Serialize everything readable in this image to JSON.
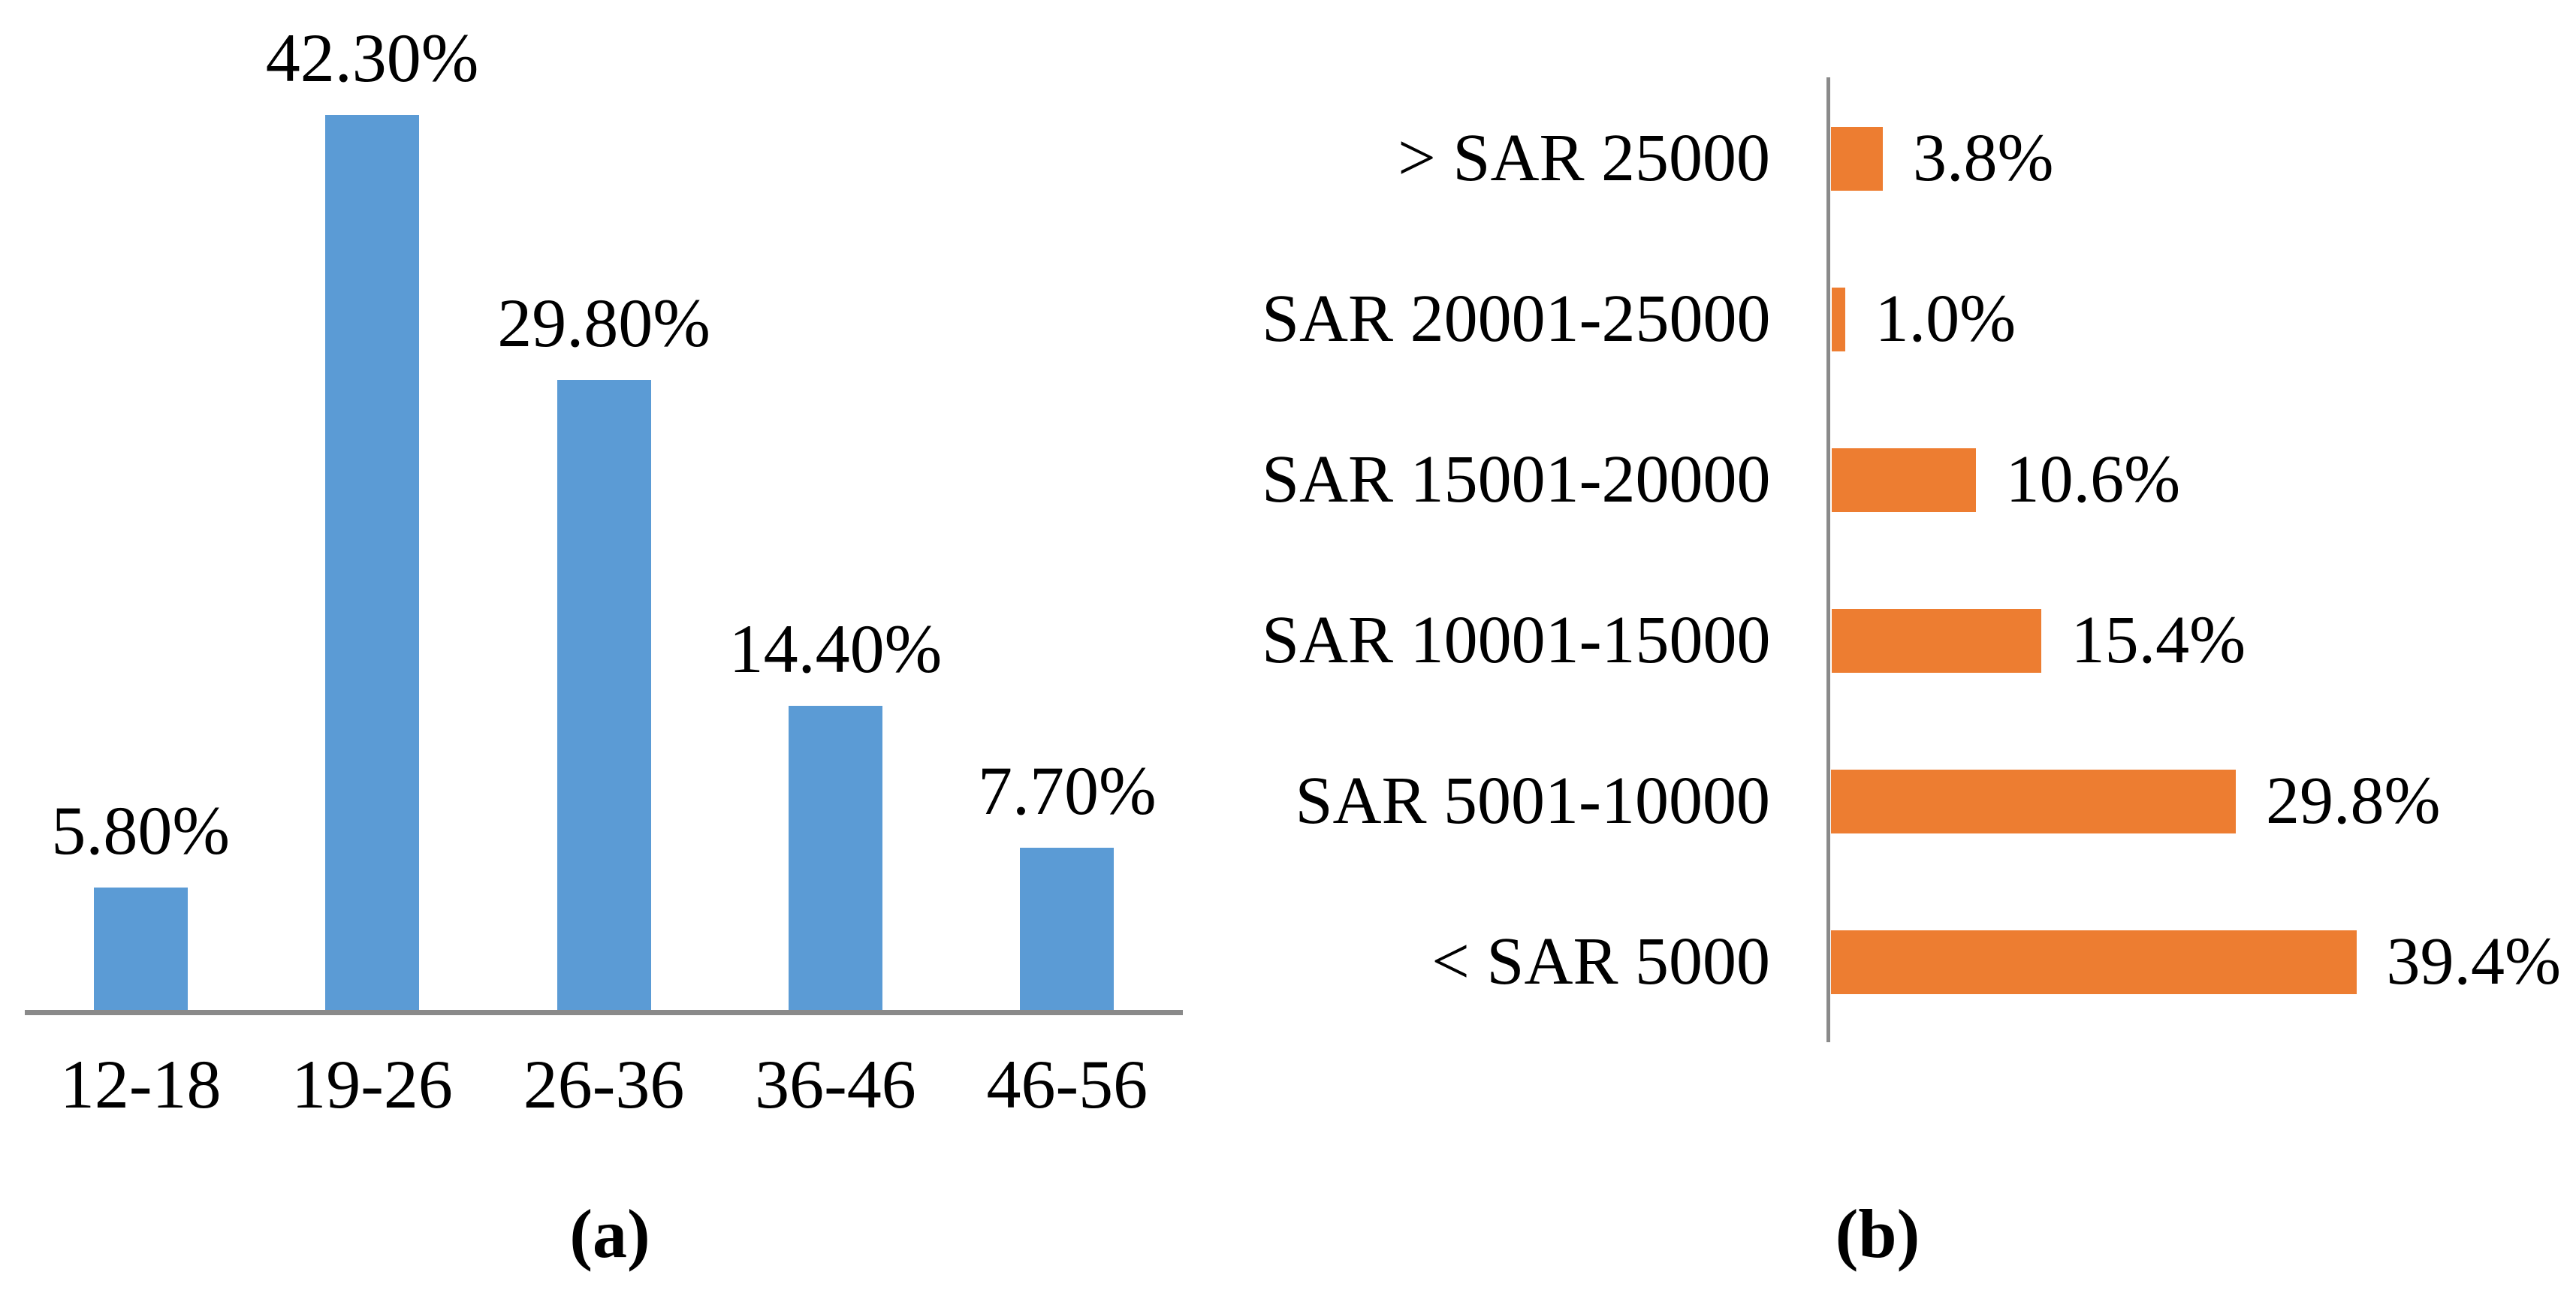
{
  "figure": {
    "captions": {
      "a": "(a)",
      "b": "(b)"
    }
  },
  "chart_data": [
    {
      "id": "a",
      "type": "bar",
      "orientation": "vertical",
      "title": "",
      "xlabel": "",
      "ylabel": "",
      "categories": [
        "12-18",
        "19-26",
        "26-36",
        "36-46",
        "46-56"
      ],
      "values": [
        5.8,
        42.3,
        29.8,
        14.4,
        7.7
      ],
      "data_labels": [
        "5.80%",
        "42.30%",
        "29.80%",
        "14.40%",
        "7.70%"
      ],
      "ylim": [
        0,
        47.7
      ],
      "value_axis_visible": false,
      "grid": false,
      "legend": false,
      "bar_color": "#5B9BD5",
      "axis_color": "#8a8a8a",
      "label_color": "#000000"
    },
    {
      "id": "b",
      "type": "bar",
      "orientation": "horizontal",
      "title": "",
      "xlabel": "",
      "ylabel": "",
      "categories": [
        "> SAR 25000",
        "SAR 20001-25000",
        "SAR 15001-20000",
        "SAR 10001-15000",
        "SAR 5001-10000",
        "< SAR 5000"
      ],
      "values": [
        3.8,
        1.0,
        10.6,
        15.4,
        29.8,
        39.4
      ],
      "data_labels": [
        "3.8%",
        "1.0%",
        "10.6%",
        "15.4%",
        "29.8%",
        "39.4%"
      ],
      "xlim": [
        0,
        43
      ],
      "value_axis_visible": false,
      "grid": false,
      "legend": false,
      "bar_color": "#ED7D31",
      "axis_color": "#8a8a8a",
      "label_color": "#000000"
    }
  ]
}
